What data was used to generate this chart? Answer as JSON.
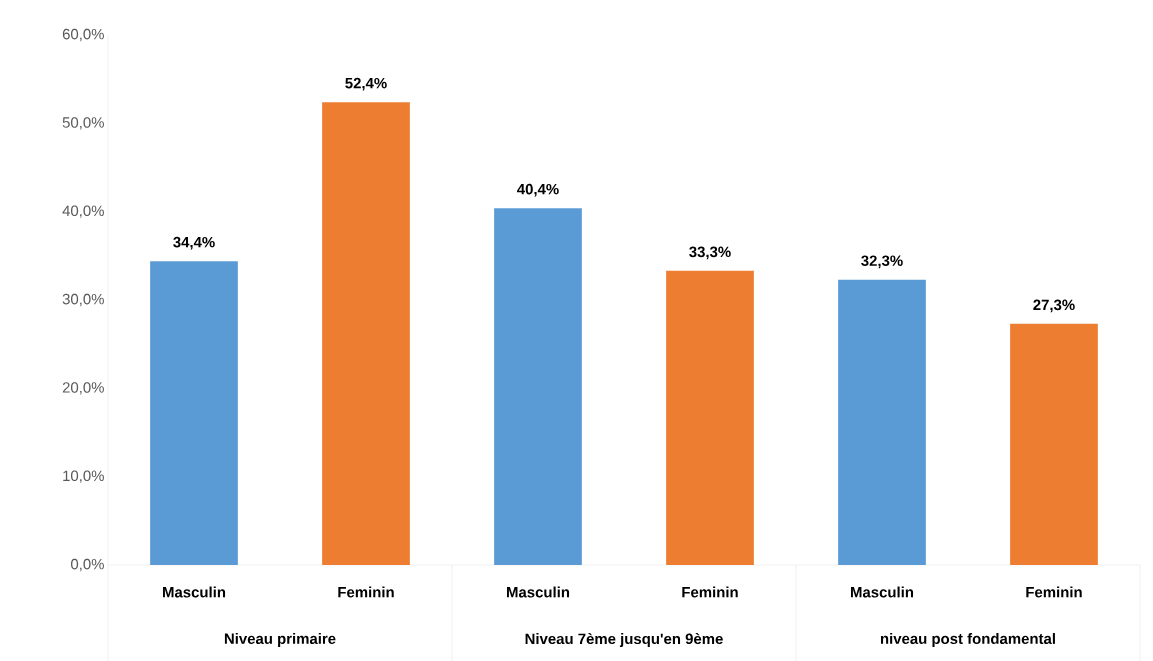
{
  "chart_data": {
    "type": "bar",
    "categories": [
      "Masculin",
      "Feminin",
      "Masculin",
      "Feminin",
      "Masculin",
      "Feminin"
    ],
    "values": [
      34.4,
      52.4,
      40.4,
      33.3,
      32.3,
      27.3
    ],
    "colors": [
      "#5b9bd5",
      "#ed7d31",
      "#5b9bd5",
      "#ed7d31",
      "#5b9bd5",
      "#ed7d31"
    ],
    "value_labels": [
      "34,4%",
      "52,4%",
      "40,4%",
      "33,3%",
      "32,3%",
      "27,3%"
    ],
    "ylim": [
      0,
      60
    ],
    "yticks": [
      {
        "value": 0,
        "label": "0,0%"
      },
      {
        "value": 10,
        "label": "10,0%"
      },
      {
        "value": 20,
        "label": "20,0%"
      },
      {
        "value": 30,
        "label": "30,0%"
      },
      {
        "value": 40,
        "label": "40,0%"
      },
      {
        "value": 50,
        "label": "50,0%"
      },
      {
        "value": 60,
        "label": "60,0%"
      }
    ],
    "annotations": [
      "Niveau primaire",
      "Niveau 7ème jusqu'en 9ème",
      "niveau post fondamental"
    ],
    "grid": false
  }
}
